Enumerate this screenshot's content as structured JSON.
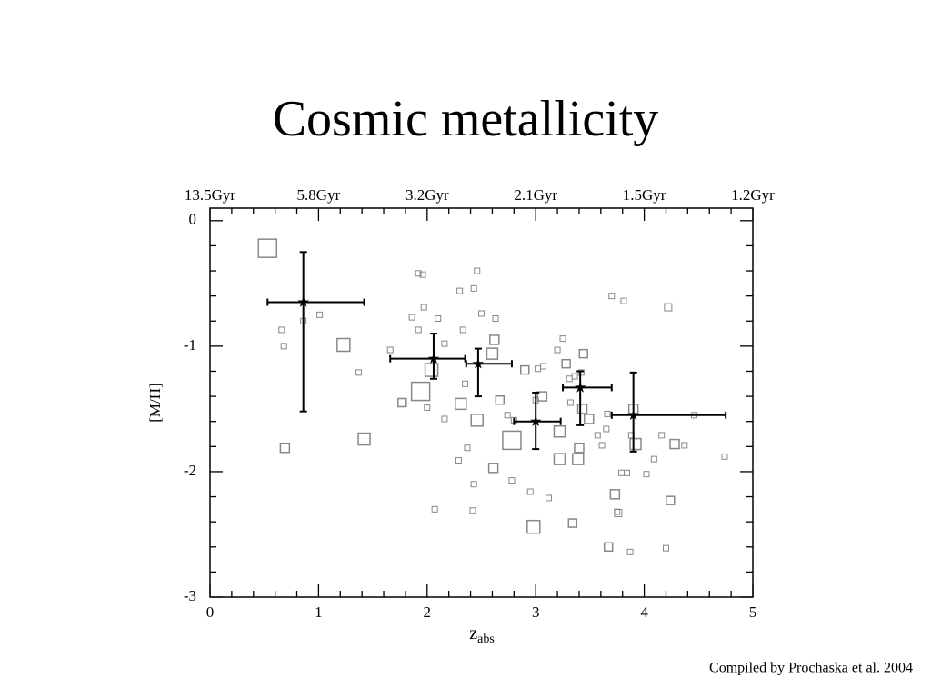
{
  "title": "Cosmic metallicity",
  "caption": "Compiled by Prochaska et al. 2004",
  "chart_data": {
    "type": "scatter",
    "xlabel": {
      "main": "z",
      "sub": "abs"
    },
    "ylabel": "[M/H]",
    "xlim": [
      0,
      5
    ],
    "ylim": [
      -3,
      0.1
    ],
    "xticks": [
      0,
      1,
      2,
      3,
      4,
      5
    ],
    "yticks": [
      0,
      -1,
      -2,
      -3
    ],
    "xminorticks": [
      0.2,
      0.4,
      0.6,
      0.8,
      1.2,
      1.4,
      1.6,
      1.8,
      2.2,
      2.4,
      2.6,
      2.8,
      3.2,
      3.4,
      3.6,
      3.8,
      4.2,
      4.4,
      4.6,
      4.8
    ],
    "yminorticks": [
      -0.2,
      -0.4,
      -0.6,
      -0.8,
      -1.2,
      -1.4,
      -1.6,
      -1.8,
      -2.2,
      -2.4,
      -2.6,
      -2.8
    ],
    "x2ticks": [
      {
        "value": 0,
        "label": "13.5Gyr"
      },
      {
        "value": 1,
        "label": "5.8Gyr"
      },
      {
        "value": 2,
        "label": "3.2Gyr"
      },
      {
        "value": 3,
        "label": "2.1Gyr"
      },
      {
        "value": 4,
        "label": "1.5Gyr"
      },
      {
        "value": 5,
        "label": "1.2Gyr"
      }
    ],
    "points": {
      "color": "#888888",
      "x": [
        0.53,
        1.23,
        1.42,
        0.69,
        1.94,
        2.04,
        2.31,
        2.46,
        2.6,
        2.78,
        2.98,
        2.62,
        1.77,
        2.67,
        3.06,
        3.22,
        3.22,
        3.39,
        3.4,
        3.43,
        3.49,
        2.61,
        2.9,
        3.44,
        3.28,
        3.73,
        3.9,
        3.92,
        4.28,
        4.24,
        4.22,
        3.67,
        3.34,
        3.76,
        0.66,
        0.68,
        0.86,
        1.01,
        1.37,
        1.66,
        1.86,
        1.92,
        1.96,
        1.97,
        2.1,
        1.92,
        2.0,
        2.16,
        2.16,
        2.3,
        2.33,
        2.43,
        2.46,
        2.35,
        2.37,
        2.29,
        2.43,
        2.42,
        2.07,
        2.5,
        2.63,
        2.74,
        2.8,
        2.78,
        2.95,
        3.12,
        3.0,
        3.02,
        3.07,
        3.2,
        3.25,
        3.31,
        3.36,
        3.32,
        3.42,
        3.61,
        3.65,
        3.66,
        3.7,
        3.81,
        3.79,
        3.84,
        3.75,
        3.87,
        3.88,
        4.02,
        4.09,
        4.16,
        4.2,
        4.37,
        4.46,
        4.74,
        3.57
      ],
      "y": [
        -0.22,
        -0.99,
        -1.74,
        -1.81,
        -1.36,
        -1.19,
        -1.46,
        -1.59,
        -1.06,
        -1.75,
        -2.44,
        -0.95,
        -1.45,
        -1.43,
        -1.4,
        -1.68,
        -1.9,
        -1.9,
        -1.81,
        -1.5,
        -1.58,
        -1.97,
        -1.19,
        -1.06,
        -1.14,
        -2.18,
        -1.5,
        -1.78,
        -1.78,
        -2.23,
        -0.69,
        -2.6,
        -2.41,
        -2.33,
        -0.87,
        -1.0,
        -0.8,
        -0.75,
        -1.21,
        -1.03,
        -0.77,
        -0.42,
        -0.43,
        -0.69,
        -0.78,
        -0.87,
        -1.49,
        -1.58,
        -0.98,
        -0.56,
        -0.87,
        -0.54,
        -0.4,
        -1.3,
        -1.81,
        -1.91,
        -2.1,
        -2.31,
        -2.3,
        -0.74,
        -0.78,
        -1.55,
        -1.59,
        -2.07,
        -2.16,
        -2.21,
        -1.43,
        -1.18,
        -1.16,
        -1.03,
        -0.94,
        -1.26,
        -1.24,
        -1.45,
        -1.21,
        -1.79,
        -1.66,
        -1.54,
        -0.6,
        -0.64,
        -2.01,
        -2.01,
        -2.32,
        -2.64,
        -1.71,
        -2.02,
        -1.9,
        -1.71,
        -2.61,
        -1.79,
        -1.55,
        -1.88,
        -1.71
      ],
      "sizes": [
        20,
        14,
        13,
        10,
        20,
        14,
        12,
        13,
        12,
        20,
        14,
        10,
        9,
        9,
        10,
        12,
        12,
        12,
        10,
        10,
        10,
        10,
        9,
        9,
        9,
        10,
        10,
        12,
        10,
        9,
        8,
        9,
        9,
        8,
        6,
        6,
        6,
        6,
        6,
        6,
        6,
        6,
        6,
        6,
        6,
        6,
        6,
        6,
        6,
        6,
        6,
        6,
        6,
        6,
        6,
        6,
        6,
        6,
        6,
        6,
        6,
        6,
        6,
        6,
        6,
        6,
        6,
        6,
        6,
        6,
        6,
        6,
        6,
        6,
        6,
        6,
        6,
        6,
        6,
        6,
        6,
        6,
        6,
        6,
        6,
        6,
        6,
        6,
        6,
        6,
        6,
        6,
        6
      ]
    },
    "bins": {
      "color": "#000000",
      "x": [
        0.86,
        2.06,
        2.47,
        3.0,
        3.41,
        3.9
      ],
      "y": [
        -0.65,
        -1.1,
        -1.14,
        -1.6,
        -1.33,
        -1.55
      ],
      "x_low": [
        0.53,
        1.66,
        2.36,
        2.8,
        3.25,
        3.7
      ],
      "x_high": [
        1.42,
        2.35,
        2.78,
        3.23,
        3.7,
        4.75
      ],
      "y_low": [
        -1.52,
        -1.26,
        -1.4,
        -1.82,
        -1.63,
        -1.84
      ],
      "y_high": [
        -0.25,
        -0.9,
        -1.02,
        -1.37,
        -1.2,
        -1.21
      ]
    }
  }
}
